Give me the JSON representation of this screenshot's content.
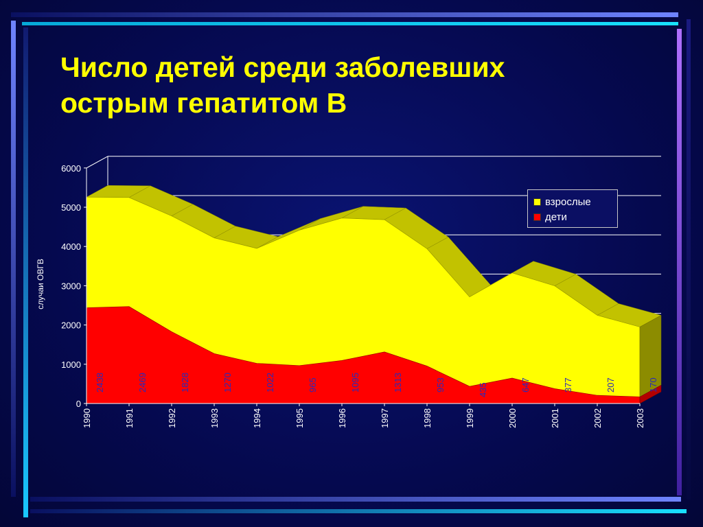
{
  "title": {
    "line1": "Число  детей среди заболевших",
    "line2": "острым гепатитом В"
  },
  "colors": {
    "adults": "#ffff00",
    "adults_side": "#c2c200",
    "children": "#ff0000",
    "children_side": "#b30000",
    "gridline": "#ffffff",
    "data_label": "#2a2ab8"
  },
  "chart_data": {
    "type": "area",
    "stacked": true,
    "three_d": true,
    "title": "",
    "xlabel": "",
    "ylabel": "случаи ОВГВ",
    "ylim": [
      0,
      6000
    ],
    "yticks": [
      "0",
      "1000",
      "2000",
      "3000",
      "4000",
      "5000",
      "6000"
    ],
    "grid": true,
    "legend_position": "top-right",
    "categories": [
      "1990",
      "1991",
      "1992",
      "1993",
      "1994",
      "1995",
      "1996",
      "1997",
      "1998",
      "1999",
      "2000",
      "2001",
      "2002",
      "2003"
    ],
    "series": [
      {
        "name": "дети",
        "values": [
          2438,
          2469,
          1828,
          1270,
          1022,
          965,
          1095,
          1313,
          953,
          435,
          647,
          377,
          207,
          170
        ],
        "data_labels": [
          "2438",
          "2469",
          "1828",
          "1270",
          "1022",
          "965",
          "1095",
          "1313",
          "953",
          "435",
          "647",
          "377",
          "207",
          "170"
        ]
      },
      {
        "name": "взрослые",
        "values": [
          2820,
          2780,
          2950,
          2950,
          2930,
          3450,
          3630,
          3370,
          2990,
          2280,
          2680,
          2620,
          2040,
          1780
        ]
      }
    ]
  },
  "legend": [
    {
      "label": "взрослые",
      "color": "#ffff00"
    },
    {
      "label": "дети",
      "color": "#ff0000"
    }
  ]
}
